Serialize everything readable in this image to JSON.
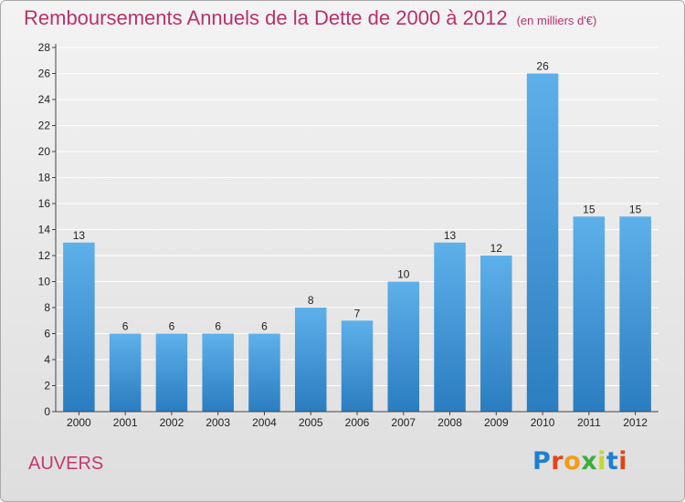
{
  "header": {
    "title": "Remboursements Annuels de la Dette de 2000 à 2012",
    "unit": "(en milliers d'€)"
  },
  "footer": {
    "commune": "AUVERS",
    "logo_letters": [
      "P",
      "r",
      "o",
      "x",
      "i",
      "t",
      "i"
    ]
  },
  "colors": {
    "title": "#b8326a",
    "bar_top": "#5eb0ea",
    "bar_bottom": "#2a7dc0",
    "grid": "#ffffff"
  },
  "chart_data": {
    "type": "bar",
    "categories": [
      "2000",
      "2001",
      "2002",
      "2003",
      "2004",
      "2005",
      "2006",
      "2007",
      "2008",
      "2009",
      "2010",
      "2011",
      "2012"
    ],
    "values": [
      13,
      6,
      6,
      6,
      6,
      8,
      7,
      10,
      13,
      12,
      26,
      15,
      15
    ],
    "data_labels": [
      "13",
      "6",
      "6",
      "6",
      "6",
      "8",
      "7",
      "10",
      "13",
      "12",
      "26",
      "15",
      "15"
    ],
    "yticks": [
      0,
      2,
      4,
      6,
      8,
      10,
      12,
      14,
      16,
      18,
      20,
      22,
      24,
      26,
      28
    ],
    "ylim": [
      0,
      28
    ],
    "grid": true,
    "legend": "none",
    "title": "Remboursements Annuels de la Dette de 2000 à 2012",
    "xlabel": "",
    "ylabel": ""
  }
}
